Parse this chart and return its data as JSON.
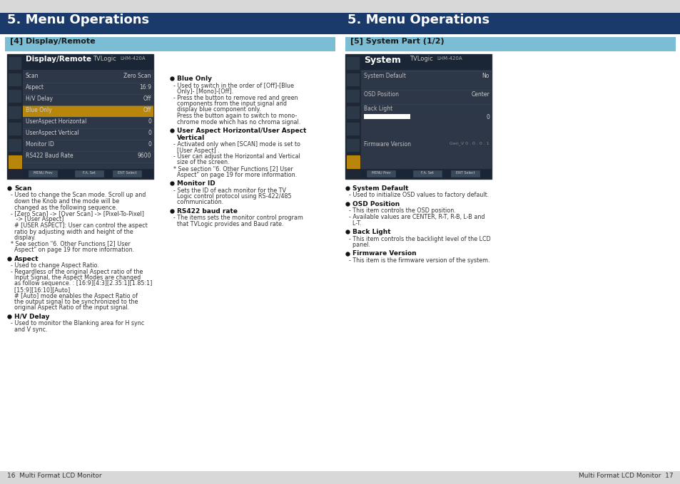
{
  "page_bg": "#d8d8d8",
  "content_bg": "#ffffff",
  "header_bg": "#1a3a6b",
  "header_text": "#ffffff",
  "header_title": "5. Menu Operations",
  "subheader_bg": "#7bbdd4",
  "subheader_text": "#1a1a1a",
  "left_subheader": "[4] Display/Remote",
  "right_subheader": "[5] System Part (1/2)",
  "footer_left": "16  Multi Format LCD Monitor",
  "footer_right": "Multi Format LCD Monitor  17",
  "left_screen_title": "Display/Remote",
  "left_screen_brand": "TVLogic",
  "left_screen_model": "LHM-420A",
  "left_screen_rows": [
    [
      "Scan",
      "Zero Scan",
      false
    ],
    [
      "Aspect",
      "16:9",
      false
    ],
    [
      "H/V Delay",
      "Off",
      false
    ],
    [
      "Blue Only",
      "Off",
      true
    ],
    [
      "UserAspect Horizontal",
      "0",
      false
    ],
    [
      "UserAspect Vertical",
      "0",
      false
    ],
    [
      "Monitor ID",
      "0",
      false
    ],
    [
      "RS422 Baud Rate",
      "9600",
      false
    ]
  ],
  "right_screen_title": "System",
  "right_screen_brand": "TVLogic",
  "right_screen_model": "LHM-420A",
  "right_screen_rows": [
    [
      "System Default",
      "No",
      false,
      false
    ],
    [
      "OSD Position",
      "Center",
      false,
      false
    ],
    [
      "Back Light",
      "0",
      true,
      false
    ],
    [
      "Firmware Version",
      "Gen_V 0 . 0 . 0 . 1",
      false,
      true
    ]
  ],
  "left_bullet_sections": [
    {
      "title": "Scan",
      "lines": [
        "- Used to change the Scan mode. Scroll up and",
        "  down the Knob and the mode will be",
        "  changed as the following sequence.",
        "- [Zero Scan] -> [Over Scan] -> [Pixel-To-Pixel]",
        "   -> [User Aspect]",
        "  # [USER ASPECT]: User can control the aspect",
        "  ratio by adjusting width and height of the",
        "  display.",
        "* See section \"6. Other Functions [2] User",
        "  Aspect\" on page 19 for more information."
      ]
    },
    {
      "title": "Aspect",
      "lines": [
        "- Used to change Aspect Ratio.",
        "- Regardless of the original Aspect ratio of the",
        "  Input Signal, the Aspect Modes are changed",
        "  as follow sequence. : [16:9][4:3][2.35:1][1.85:1]",
        "  [15:9][16:10][Auto]",
        "  # [Auto] mode enables the Aspect Ratio of",
        "  the output signal to be synchronized to the",
        "  original Aspect Ratio of the input signal."
      ]
    },
    {
      "title": "H/V Delay",
      "lines": [
        "- Used to monitor the Blanking area for H sync",
        "  and V sync."
      ]
    }
  ],
  "right_col_bullet_sections": [
    {
      "title": "Blue Only",
      "lines": [
        "- Used to switch in the order of [Off]-[Blue",
        "  Only]- [Mono]-[Off].",
        "- Press the button to remove red and green",
        "  components from the input signal and",
        "  display blue component only.",
        "  Press the button again to switch to mono-",
        "  chrome mode which has no chroma signal."
      ]
    },
    {
      "title": "User Aspect Horizontal/User Aspect",
      "title2": "Vertical",
      "lines": [
        "- Activated only when [SCAN] mode is set to",
        "  [User Aspect] .",
        "- User can adjust the Horizontal and Vertical",
        "  size of the screen.",
        "* See section \"6. Other Functions [2] User",
        "  Aspect\" on page 19 for more information."
      ]
    },
    {
      "title": "Monitor ID",
      "lines": [
        "- Sets the ID of each monitor for the TV",
        "  Logic control protocol using RS-422/485",
        "  communication."
      ]
    },
    {
      "title": "RS422 baud rate",
      "lines": [
        "- The items sets the monitor control program",
        "  that TVLogic provides and Baud rate."
      ]
    }
  ],
  "right_col2_bullet_sections": [
    {
      "title": "System Default",
      "lines": [
        "- Used to initialize OSD values to factory default."
      ]
    },
    {
      "title": "OSD Position",
      "lines": [
        "- This item controls the OSD position.",
        "- Available values are CENTER, R-T, R-B, L-B and",
        "  L-T."
      ]
    },
    {
      "title": "Back Light",
      "lines": [
        "- This item controls the backlight level of the LCD",
        "  panel."
      ]
    },
    {
      "title": "Firmware Version",
      "lines": [
        "- This item is the firmware version of the system."
      ]
    }
  ]
}
